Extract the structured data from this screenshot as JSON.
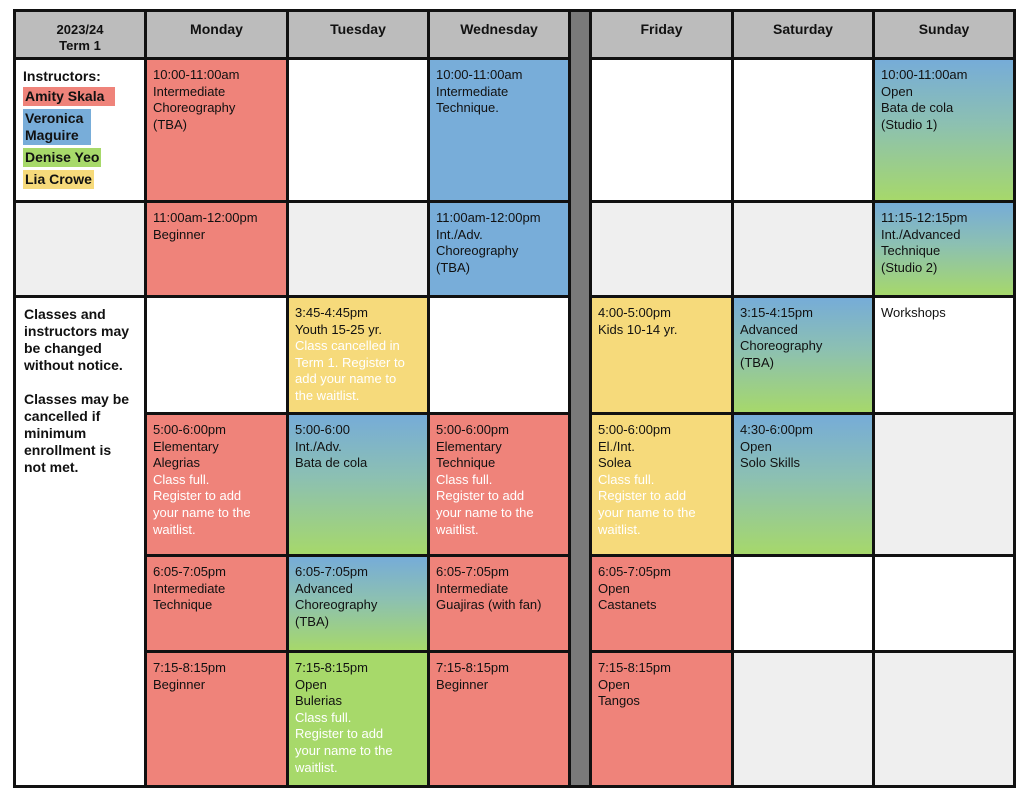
{
  "header": {
    "term_line1": "2023/24",
    "term_line2": "Term 1",
    "days": [
      "Monday",
      "Tuesday",
      "Wednesday",
      "",
      "Friday",
      "Saturday",
      "Sunday"
    ]
  },
  "instructors": {
    "title": "Instructors:",
    "list": [
      {
        "name": "Amity Skala",
        "color": "#ef837a"
      },
      {
        "name": "Veronica Maguire",
        "color": "#78add9"
      },
      {
        "name": "Denise Yeo",
        "color": "#a7d96a"
      },
      {
        "name": "Lia Crowe",
        "color": "#f6da7b"
      }
    ]
  },
  "notices": [
    "Classes and instructors may be changed without notice.",
    "Classes may be cancelled if minimum enrollment is not met."
  ],
  "colors": {
    "header_gray": "#bcbcbc",
    "divider_gray": "#7a7a7a",
    "red": "#ef837a",
    "blue": "#78add9",
    "yellow": "#f6da7b",
    "green": "#a7d96a",
    "light_gray": "#efefef"
  },
  "classes": {
    "monday": [
      {
        "lines": [
          "10:00-11:00am",
          "Intermediate",
          "Choreography",
          "(TBA)"
        ],
        "note": []
      },
      {
        "lines": [
          "11:00am-12:00pm",
          "Beginner"
        ],
        "note": []
      },
      {
        "lines": [
          "5:00-6:00pm",
          "Elementary",
          "Alegrias"
        ],
        "note": [
          "Class full.",
          "Register to add",
          "your name to the",
          "waitlist."
        ]
      },
      {
        "lines": [
          "6:05-7:05pm",
          "Intermediate",
          "Technique"
        ],
        "note": []
      },
      {
        "lines": [
          "7:15-8:15pm",
          "Beginner"
        ],
        "note": []
      }
    ],
    "tuesday": [
      {
        "lines": [
          "3:45-4:45pm",
          "Youth 15-25 yr."
        ],
        "note": [
          "Class cancelled in",
          "Term 1. Register to",
          "add your name to",
          "the waitlist."
        ]
      },
      {
        "lines": [
          "5:00-6:00",
          "Int./Adv.",
          "Bata de cola"
        ],
        "note": []
      },
      {
        "lines": [
          "6:05-7:05pm",
          "Advanced",
          "Choreography",
          "(TBA)"
        ],
        "note": []
      },
      {
        "lines": [
          "7:15-8:15pm",
          "Open",
          "Bulerias"
        ],
        "note": [
          "Class full.",
          "Register to add",
          "your name to the",
          "waitlist."
        ]
      }
    ],
    "wednesday": [
      {
        "lines": [
          "10:00-11:00am",
          "Intermediate",
          "Technique."
        ],
        "note": []
      },
      {
        "lines": [
          "11:00am-12:00pm",
          "Int./Adv.",
          "Choreography",
          "(TBA)"
        ],
        "note": []
      },
      {
        "lines": [
          "5:00-6:00pm",
          "Elementary",
          "Technique"
        ],
        "note": [
          "Class full.",
          "Register to add",
          "your name to the",
          "waitlist."
        ]
      },
      {
        "lines": [
          "6:05-7:05pm",
          "Intermediate",
          "Guajiras (with fan)"
        ],
        "note": []
      },
      {
        "lines": [
          "7:15-8:15pm",
          "Beginner"
        ],
        "note": []
      }
    ],
    "friday": [
      {
        "lines": [
          "4:00-5:00pm",
          "Kids 10-14 yr."
        ],
        "note": []
      },
      {
        "lines": [
          "5:00-6:00pm",
          "El./Int.",
          "Solea"
        ],
        "note": [
          "Class full.",
          "Register to add",
          "your name to the",
          "waitlist."
        ]
      },
      {
        "lines": [
          "6:05-7:05pm",
          "Open",
          "Castanets"
        ],
        "note": []
      },
      {
        "lines": [
          "7:15-8:15pm",
          "Open",
          "Tangos"
        ],
        "note": []
      }
    ],
    "saturday": [
      {
        "lines": [
          "3:15-4:15pm",
          "Advanced",
          "Choreography",
          "(TBA)"
        ],
        "note": []
      },
      {
        "lines": [
          "4:30-6:00pm",
          "Open",
          "Solo Skills"
        ],
        "note": []
      }
    ],
    "sunday": [
      {
        "lines": [
          "10:00-11:00am",
          "Open",
          "Bata de cola",
          "(Studio 1)"
        ],
        "note": []
      },
      {
        "lines": [
          "11:15-12:15pm",
          "Int./Advanced",
          "Technique",
          "(Studio 2)"
        ],
        "note": []
      },
      {
        "lines": [
          "Workshops"
        ],
        "note": []
      }
    ]
  }
}
